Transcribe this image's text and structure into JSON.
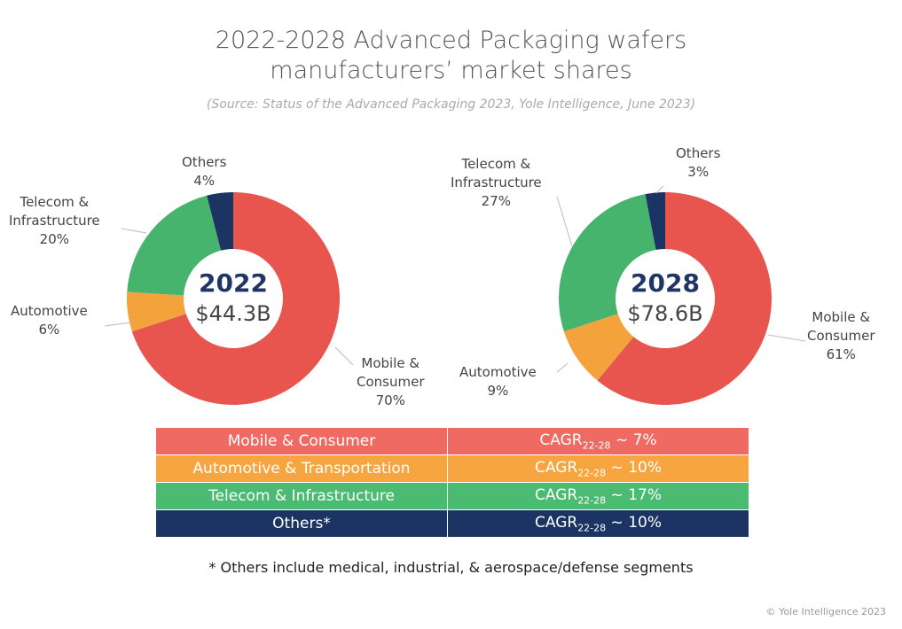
{
  "title_line1": "2022-2028 Advanced Packaging wafers",
  "title_line2": "manufacturers’ market shares",
  "source": "(Source: Status of the Advanced Packaging 2023, Yole Intelligence, June 2023)",
  "chart_data": [
    {
      "type": "pie",
      "donut": true,
      "center_label": "2022",
      "center_value": "$44.3B",
      "categories": [
        "Mobile & Consumer",
        "Automotive",
        "Telecom & Infrastructure",
        "Others"
      ],
      "values": [
        70,
        6,
        20,
        4
      ],
      "labels": [
        [
          "Mobile &",
          "Consumer",
          "70%"
        ],
        [
          "Automotive",
          "6%"
        ],
        [
          "Telecom &",
          "Infrastructure",
          "20%"
        ],
        [
          "Others",
          "4%"
        ]
      ]
    },
    {
      "type": "pie",
      "donut": true,
      "center_label": "2028",
      "center_value": "$78.6B",
      "categories": [
        "Mobile & Consumer",
        "Automotive",
        "Telecom & Infrastructure",
        "Others"
      ],
      "values": [
        61,
        9,
        27,
        3
      ],
      "labels": [
        [
          "Mobile &",
          "Consumer",
          "61%"
        ],
        [
          "Automotive",
          "9%"
        ],
        [
          "Telecom &",
          "Infrastructure",
          "27%"
        ],
        [
          "Others",
          "3%"
        ]
      ]
    }
  ],
  "colors": {
    "mobile": "#e8554e",
    "automotive": "#f4a23c",
    "telecom": "#47b46e",
    "others": "#1c3463"
  },
  "table": {
    "rows": [
      {
        "segment": "Mobile & Consumer",
        "cagr_prefix": "CAGR",
        "cagr_sub": "22-28",
        "cagr_value": " ~ 7%",
        "color": "#ef6a62"
      },
      {
        "segment": "Automotive & Transportation",
        "cagr_prefix": "CAGR",
        "cagr_sub": "22-28",
        "cagr_value": " ~ 10%",
        "color": "#f6a540"
      },
      {
        "segment": "Telecom & Infrastructure",
        "cagr_prefix": "CAGR",
        "cagr_sub": "22-28",
        "cagr_value": " ~ 17%",
        "color": "#4cbb72"
      },
      {
        "segment": "Others*",
        "cagr_prefix": "CAGR",
        "cagr_sub": "22-28",
        "cagr_value": " ~ 10%",
        "color": "#1c3463"
      }
    ]
  },
  "footnote": "* Others include medical, industrial, & aerospace/defense segments",
  "copyright": "© Yole Intelligence 2023"
}
